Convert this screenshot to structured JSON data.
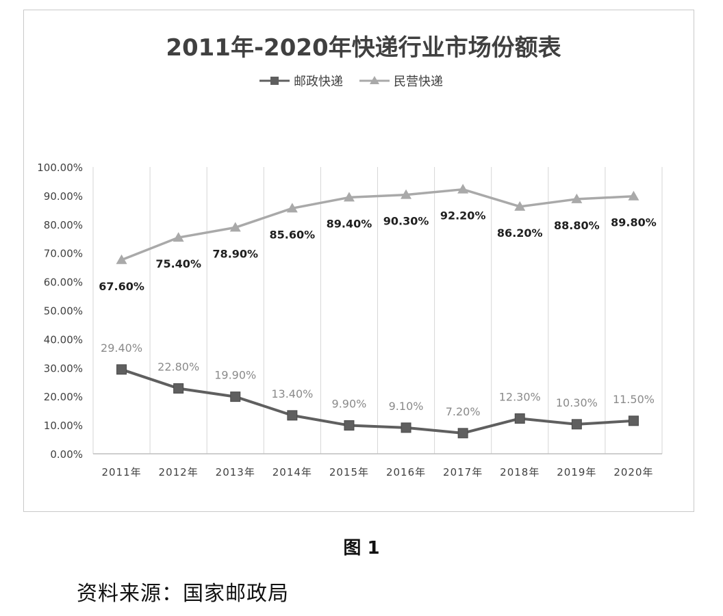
{
  "chart_data": {
    "type": "line",
    "title": "2011年-2020年快递行业市场份额表",
    "categories": [
      "2011年",
      "2012年",
      "2013年",
      "2014年",
      "2015年",
      "2016年",
      "2017年",
      "2018年",
      "2019年",
      "2020年"
    ],
    "series": [
      {
        "name": "邮政快递",
        "values": [
          29.4,
          22.8,
          19.9,
          13.4,
          9.9,
          9.1,
          7.2,
          12.3,
          10.3,
          11.5
        ],
        "labels": [
          "29.40%",
          "22.80%",
          "19.90%",
          "13.40%",
          "9.90%",
          "9.10%",
          "7.20%",
          "12.30%",
          "10.30%",
          "11.50%"
        ],
        "color": "#5f5f5f",
        "label_color": "#8a8a8a",
        "marker": "square"
      },
      {
        "name": "民营快递",
        "values": [
          67.6,
          75.4,
          78.9,
          85.6,
          89.4,
          90.3,
          92.2,
          86.2,
          88.8,
          89.8
        ],
        "labels": [
          "67.60%",
          "75.40%",
          "78.90%",
          "85.60%",
          "89.40%",
          "90.30%",
          "92.20%",
          "86.20%",
          "88.80%",
          "89.80%"
        ],
        "color": "#a9a9a9",
        "label_color": "#1f1f1f",
        "marker": "triangle"
      }
    ],
    "ylim": [
      0,
      100
    ],
    "yticks": [
      "0.00%",
      "10.00%",
      "20.00%",
      "30.00%",
      "40.00%",
      "50.00%",
      "60.00%",
      "70.00%",
      "80.00%",
      "90.00%",
      "100.00%"
    ],
    "legend_position": "top-left",
    "grid": "vertical"
  },
  "caption": "图 1",
  "source": "资料来源：国家邮政局"
}
